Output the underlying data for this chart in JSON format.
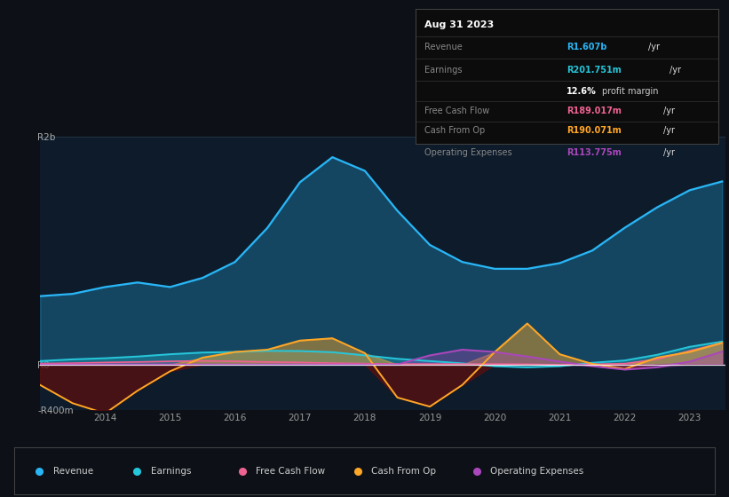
{
  "bg_color": "#0d1117",
  "plot_bg_color": "#0d1b2a",
  "grid_color": "#2a3a4a",
  "zero_line_color": "#ffffff",
  "years": [
    2013.0,
    2013.5,
    2014.0,
    2014.5,
    2015.0,
    2015.5,
    2016.0,
    2016.5,
    2017.0,
    2017.5,
    2018.0,
    2018.5,
    2019.0,
    2019.5,
    2020.0,
    2020.5,
    2021.0,
    2021.5,
    2022.0,
    2022.5,
    2023.0,
    2023.5
  ],
  "revenue": [
    600,
    620,
    680,
    720,
    680,
    760,
    900,
    1200,
    1600,
    1820,
    1700,
    1350,
    1050,
    900,
    840,
    840,
    890,
    1000,
    1200,
    1380,
    1530,
    1607
  ],
  "earnings": [
    30,
    45,
    55,
    70,
    90,
    105,
    110,
    120,
    118,
    108,
    80,
    50,
    30,
    10,
    -15,
    -25,
    -15,
    15,
    35,
    85,
    155,
    201
  ],
  "free_cash_flow": [
    8,
    12,
    18,
    22,
    28,
    32,
    28,
    22,
    18,
    12,
    8,
    4,
    4,
    4,
    4,
    2,
    -3,
    2,
    8,
    45,
    120,
    189
  ],
  "cash_from_op": [
    -180,
    -340,
    -430,
    -230,
    -60,
    60,
    110,
    130,
    210,
    230,
    100,
    -290,
    -370,
    -180,
    110,
    360,
    90,
    5,
    -40,
    60,
    110,
    190
  ],
  "operating_expenses": [
    0,
    0,
    0,
    0,
    0,
    0,
    0,
    0,
    0,
    0,
    0,
    0,
    80,
    130,
    110,
    70,
    25,
    -15,
    -45,
    -25,
    25,
    113
  ],
  "revenue_color": "#29b6f6",
  "earnings_color": "#26c6da",
  "free_cash_flow_color": "#f06292",
  "cash_from_op_color": "#ffa726",
  "operating_expenses_color": "#ab47bc",
  "ylim_min": -400,
  "ylim_max": 2000,
  "yticks": [
    -400,
    0,
    2000
  ],
  "ytick_labels": [
    "-R400m",
    "R0",
    "R2b"
  ],
  "xlabel_ticks": [
    2014,
    2015,
    2016,
    2017,
    2018,
    2019,
    2020,
    2021,
    2022,
    2023
  ],
  "info_box": {
    "date": "Aug 31 2023",
    "revenue_label": "Revenue",
    "revenue_value": "R1.607b",
    "revenue_unit": "/yr",
    "earnings_label": "Earnings",
    "earnings_value": "R201.751m",
    "earnings_unit": "/yr",
    "profit_margin": "12.6%",
    "profit_margin_text": "profit margin",
    "fcf_label": "Free Cash Flow",
    "fcf_value": "R189.017m",
    "fcf_unit": "/yr",
    "cop_label": "Cash From Op",
    "cop_value": "R190.071m",
    "cop_unit": "/yr",
    "opex_label": "Operating Expenses",
    "opex_value": "R113.775m",
    "opex_unit": "/yr"
  },
  "legend_items": [
    {
      "label": "Revenue",
      "color": "#29b6f6"
    },
    {
      "label": "Earnings",
      "color": "#26c6da"
    },
    {
      "label": "Free Cash Flow",
      "color": "#f06292"
    },
    {
      "label": "Cash From Op",
      "color": "#ffa726"
    },
    {
      "label": "Operating Expenses",
      "color": "#ab47bc"
    }
  ]
}
